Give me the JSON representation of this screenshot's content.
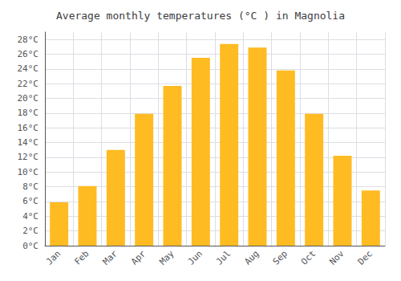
{
  "chart_data": {
    "type": "bar",
    "title": "Average monthly temperatures (°C ) in Magnolia",
    "categories": [
      "Jan",
      "Feb",
      "Mar",
      "Apr",
      "May",
      "Jun",
      "Jul",
      "Aug",
      "Sep",
      "Oct",
      "Nov",
      "Dec"
    ],
    "values": [
      5.9,
      8.1,
      13.0,
      17.9,
      21.7,
      25.5,
      27.4,
      26.9,
      23.8,
      17.9,
      12.2,
      7.5
    ],
    "color": "#FFBB22",
    "ylim": [
      0,
      29
    ],
    "yticks": [
      {
        "value": 0,
        "label": "0°C"
      },
      {
        "value": 2,
        "label": "2°C"
      },
      {
        "value": 4,
        "label": "4°C"
      },
      {
        "value": 6,
        "label": "6°C"
      },
      {
        "value": 8,
        "label": "8°C"
      },
      {
        "value": 10,
        "label": "10°C"
      },
      {
        "value": 12,
        "label": "12°C"
      },
      {
        "value": 14,
        "label": "14°C"
      },
      {
        "value": 16,
        "label": "16°C"
      },
      {
        "value": 18,
        "label": "18°C"
      },
      {
        "value": 20,
        "label": "20°C"
      },
      {
        "value": 22,
        "label": "22°C"
      },
      {
        "value": 24,
        "label": "24°C"
      },
      {
        "value": 26,
        "label": "26°C"
      },
      {
        "value": 28,
        "label": "28°C"
      }
    ],
    "grid": true
  }
}
